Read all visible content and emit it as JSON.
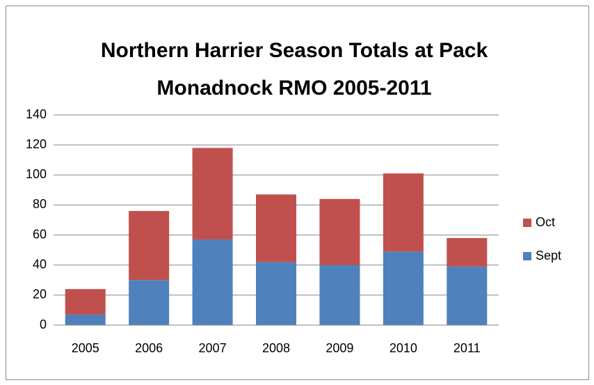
{
  "chart_data": {
    "type": "stacked_bar",
    "title": "Northern Harrier Season Totals at Pack Monadnock RMO 2005-2011",
    "categories": [
      "2005",
      "2006",
      "2007",
      "2008",
      "2009",
      "2010",
      "2011"
    ],
    "series": [
      {
        "name": "Sept",
        "color": "#4f81bd",
        "values": [
          7,
          30,
          57,
          42,
          40,
          49,
          39
        ]
      },
      {
        "name": "Oct",
        "color": "#c0504d",
        "values": [
          17,
          46,
          61,
          45,
          44,
          52,
          19
        ]
      }
    ],
    "ylim": [
      0,
      140
    ],
    "yticks": [
      0,
      20,
      40,
      60,
      80,
      100,
      120,
      140
    ],
    "grid": true,
    "legend": "right"
  }
}
